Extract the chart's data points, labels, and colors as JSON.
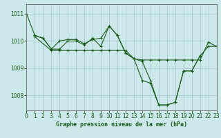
{
  "title": "Graphe pression niveau de la mer (hPa)",
  "background_color": "#cce8ea",
  "grid_color": "#aacfd2",
  "line_color": "#1a5c1a",
  "xlim": [
    0,
    23
  ],
  "ylim": [
    1007.45,
    1011.35
  ],
  "yticks": [
    1008,
    1009,
    1010,
    1011
  ],
  "xticks": [
    0,
    1,
    2,
    3,
    4,
    5,
    6,
    7,
    8,
    9,
    10,
    11,
    12,
    13,
    14,
    15,
    16,
    17,
    18,
    19,
    20,
    21,
    22,
    23
  ],
  "line1_x": [
    0,
    1,
    2,
    3,
    4,
    5,
    6,
    7,
    8,
    9,
    10,
    11,
    12,
    13,
    14,
    15,
    16,
    17,
    18,
    19,
    20,
    21
  ],
  "line1_y": [
    1011.0,
    1010.2,
    1010.1,
    1009.7,
    1010.0,
    1010.05,
    1010.05,
    1009.9,
    1010.05,
    1010.1,
    1010.55,
    1010.2,
    1009.55,
    1009.35,
    1008.55,
    1008.45,
    1007.65,
    1007.65,
    1007.75,
    1008.9,
    1008.9,
    1009.45
  ],
  "line2_x": [
    1,
    2,
    3,
    4,
    5,
    6,
    7,
    8,
    9,
    10,
    11,
    12,
    13,
    14,
    15,
    16,
    17,
    18,
    19,
    20,
    21,
    22,
    23
  ],
  "line2_y": [
    1010.2,
    1010.1,
    1009.7,
    1009.7,
    1010.0,
    1010.0,
    1009.85,
    1010.1,
    1009.8,
    1010.55,
    1010.2,
    1009.55,
    1009.35,
    1009.3,
    1009.3,
    1009.3,
    1009.3,
    1009.3,
    1009.3,
    1009.3,
    1009.3,
    1009.95,
    1009.8
  ],
  "line3_x": [
    1,
    3,
    4,
    5,
    6,
    7,
    8,
    9,
    10,
    11,
    12,
    13,
    14,
    15,
    16,
    17,
    18,
    19,
    20,
    21,
    22,
    23
  ],
  "line3_y": [
    1010.15,
    1009.65,
    1009.65,
    1009.65,
    1009.65,
    1009.65,
    1009.65,
    1009.65,
    1009.65,
    1009.65,
    1009.65,
    1009.35,
    1009.25,
    1008.55,
    1007.65,
    1007.65,
    1007.75,
    1008.9,
    1008.9,
    1009.45,
    1009.8,
    1009.8
  ]
}
